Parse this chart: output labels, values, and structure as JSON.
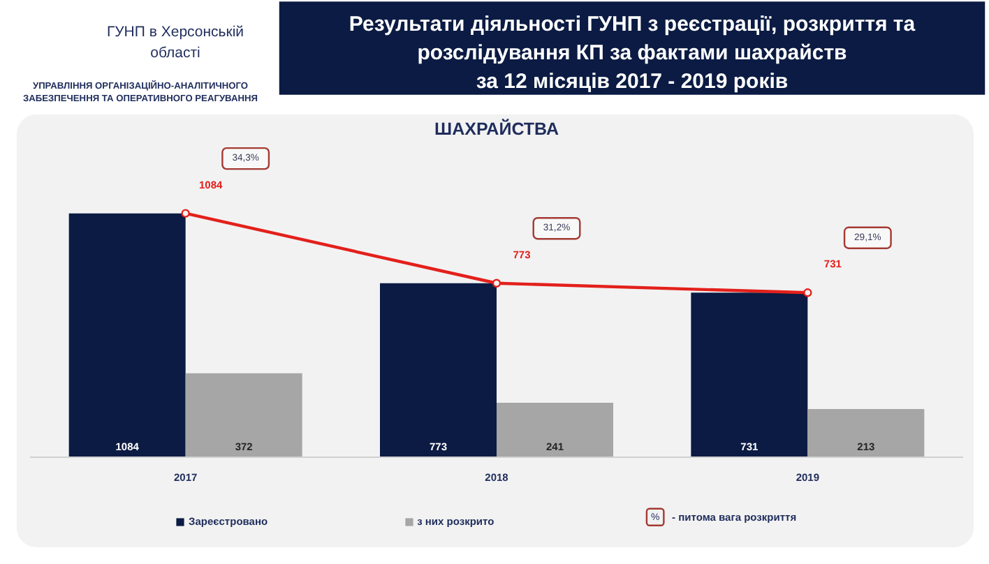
{
  "chart_data": {
    "type": "bar",
    "title": "Результати діяльності ГУНП з реєстрації, розкриття та\nрозслідування КП за фактами шахрайств\nза 12 місяців 2017 - 2019 років",
    "subtitle": "ШАХРАЙСТВА",
    "categories": [
      "2017",
      "2018",
      "2019"
    ],
    "series": [
      {
        "name": "Зареєстровано",
        "color": "#0b1b43",
        "values": [
          1084,
          773,
          731
        ]
      },
      {
        "name": "з них розкрито",
        "color": "#a6a6a6",
        "values": [
          372,
          241,
          213
        ]
      },
      {
        "type": "line",
        "color": "#e3201b",
        "values": [
          1084,
          773,
          731
        ],
        "marker": "circle",
        "line_style": "solid"
      }
    ],
    "data_labels": true,
    "legend": "bottom",
    "annotations": [
      "ГУНП в Херсонській\nобласті",
      "УПРАВЛІННЯ ОРГАНІЗАЦІЙНО-АНАЛІТИЧНОГО\nЗАБЕЗПЕЧЕННЯ ТА ОПЕРАТИВНОГО РЕАГУВАННЯ",
      "%",
      "- питома вага розкриття",
      "34,3%",
      "31,2%",
      "29,1%"
    ]
  }
}
